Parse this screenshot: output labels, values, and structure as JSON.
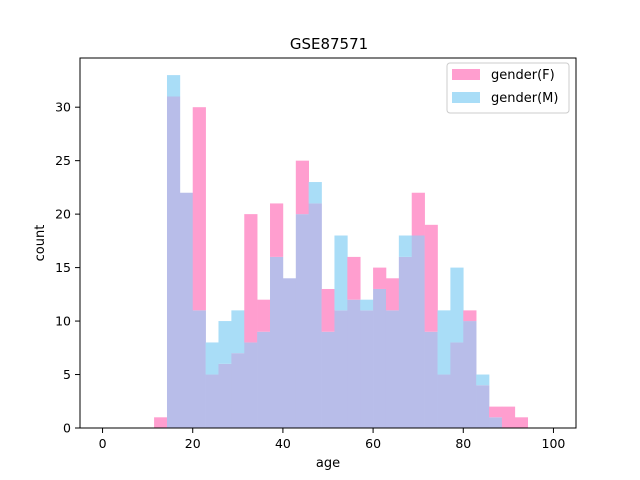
{
  "chart_data": {
    "type": "bar",
    "title": "GSE87571",
    "xlabel": "age",
    "ylabel": "count",
    "xlim": [
      -5,
      105
    ],
    "ylim": [
      0,
      34.6
    ],
    "x_ticks": [
      0,
      20,
      40,
      60,
      80,
      100
    ],
    "y_ticks": [
      0,
      5,
      10,
      15,
      20,
      25,
      30
    ],
    "bin_width": 2.86,
    "bin_starts": [
      11.43,
      14.29,
      17.14,
      20.0,
      22.86,
      25.71,
      28.57,
      31.43,
      34.29,
      37.14,
      40.0,
      42.86,
      45.71,
      48.57,
      51.43,
      54.29,
      57.14,
      60.0,
      62.86,
      65.71,
      68.57,
      71.43,
      74.29,
      77.14,
      80.0,
      82.86,
      85.71,
      88.57,
      91.43
    ],
    "series": [
      {
        "name": "gender(F)",
        "color": "#ff9ecf",
        "values": [
          1,
          31,
          22,
          30,
          5,
          6,
          7,
          20,
          12,
          21,
          14,
          25,
          21,
          13,
          11,
          16,
          11,
          15,
          14,
          16,
          22,
          19,
          5,
          8,
          11,
          4,
          2,
          2,
          1
        ]
      },
      {
        "name": "gender(M)",
        "color": "#a9ddf7",
        "values": [
          0,
          33,
          22,
          11,
          8,
          10,
          11,
          8,
          9,
          16,
          14,
          20,
          23,
          9,
          18,
          12,
          12,
          13,
          11,
          18,
          18,
          9,
          11,
          15,
          10,
          5,
          1,
          0,
          0
        ]
      }
    ],
    "overlap_color": "#b8bde9",
    "legend": {
      "position": "top-right",
      "entries": [
        "gender(F)",
        "gender(M)"
      ]
    },
    "grid": false
  }
}
